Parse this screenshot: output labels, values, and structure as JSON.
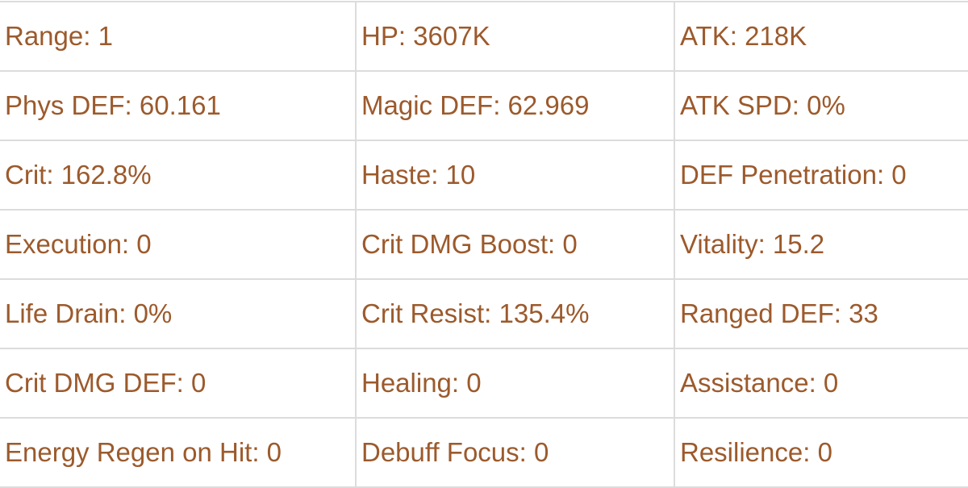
{
  "text_color": "#9c5a2c",
  "rows": [
    [
      "Range: 1",
      "HP: 3607K",
      "ATK: 218K"
    ],
    [
      "Phys DEF: 60.161",
      "Magic DEF: 62.969",
      "ATK SPD: 0%"
    ],
    [
      "Crit: 162.8%",
      "Haste: 10",
      "DEF Penetration: 0"
    ],
    [
      "Execution: 0",
      "Crit DMG Boost: 0",
      "Vitality: 15.2"
    ],
    [
      "Life Drain: 0%",
      "Crit Resist: 135.4%",
      "Ranged DEF: 33"
    ],
    [
      "Crit DMG DEF: 0",
      "Healing: 0",
      "Assistance: 0"
    ],
    [
      "Energy Regen on Hit: 0",
      "Debuff Focus: 0",
      "Resilience: 0"
    ]
  ]
}
